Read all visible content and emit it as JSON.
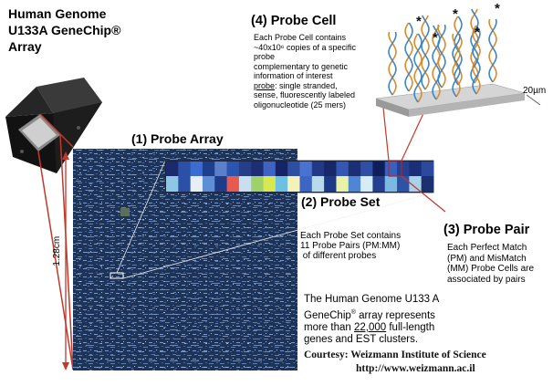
{
  "title": {
    "lines": [
      "Human Genome",
      "U133A GeneChip®",
      "Array"
    ]
  },
  "probe_cell": {
    "heading": "(4) Probe Cell",
    "text_lines": [
      "Each Probe Cell contains",
      "~40x10⁶ copies of a specific",
      "probe",
      "complementary to genetic",
      "information of interest"
    ],
    "probe_word": "probe",
    "def_line1_rest": ": single stranded,",
    "def_lines": [
      "sense, fluorescently labeled",
      "oligonucleotide (25 mers)"
    ],
    "size_label": "20µm"
  },
  "probe_array": {
    "heading": "(1) Probe Array",
    "side_label": "1.28cm"
  },
  "probe_set": {
    "heading": "(2) Probe Set",
    "desc_lines": [
      "Each Probe Set contains",
      "11 Probe Pairs (PM:MM)",
      " of different probes"
    ]
  },
  "probe_pair": {
    "heading": "(3) Probe Pair",
    "desc_lines": [
      "Each Perfect Match",
      "(PM) and MisMatch",
      "(MM) Probe Cells are",
      "associated by pairs"
    ]
  },
  "genome_note": {
    "line1": "The Human Genome U133 A",
    "line2_prefix": "GeneChip",
    "line2_sup": "®",
    "line2_suffix": " array represents",
    "line3_prefix": "more than ",
    "line3_underlined": "22,000",
    "line3_suffix": " full-length",
    "line4": "genes and EST clusters."
  },
  "credit": {
    "line1": "Courtesy: Weizmann Institute of Science",
    "line2": "http://www.weizmann.ac.il"
  },
  "colors": {
    "array_background": "#1d3358",
    "connector": "#c0392b",
    "strip_top": [
      "#1a2a6c",
      "#2c4fa8",
      "#3a6cd1",
      "#1e3f8e",
      "#5b7fc9",
      "#2a56b0",
      "#263d8a",
      "#1c2f75",
      "#3f63c2",
      "#142466",
      "#2d4ea1",
      "#4a73cf",
      "#223a86",
      "#162868",
      "#3557b3",
      "#1b3074",
      "#2f4fa5",
      "#0f1e5a",
      "#3a60bf",
      "#244090",
      "#1a2f78",
      "#2b4a9e"
    ],
    "strip_bottom": [
      "#8ec6e6",
      "#2c4fa8",
      "#e7eef5",
      "#5e8fd6",
      "#1f3c8b",
      "#e85a4f",
      "#c9dff0",
      "#9fd16a",
      "#d9e84f",
      "#6cc0e0",
      "#f4f2b8",
      "#3c66c6",
      "#b9d9ec",
      "#1d3a87",
      "#e9f3a8",
      "#4f86d4",
      "#d6ecf6",
      "#243f8f",
      "#7cb8e2",
      "#2d53a9",
      "#a9d2ea",
      "#1a306f"
    ]
  }
}
